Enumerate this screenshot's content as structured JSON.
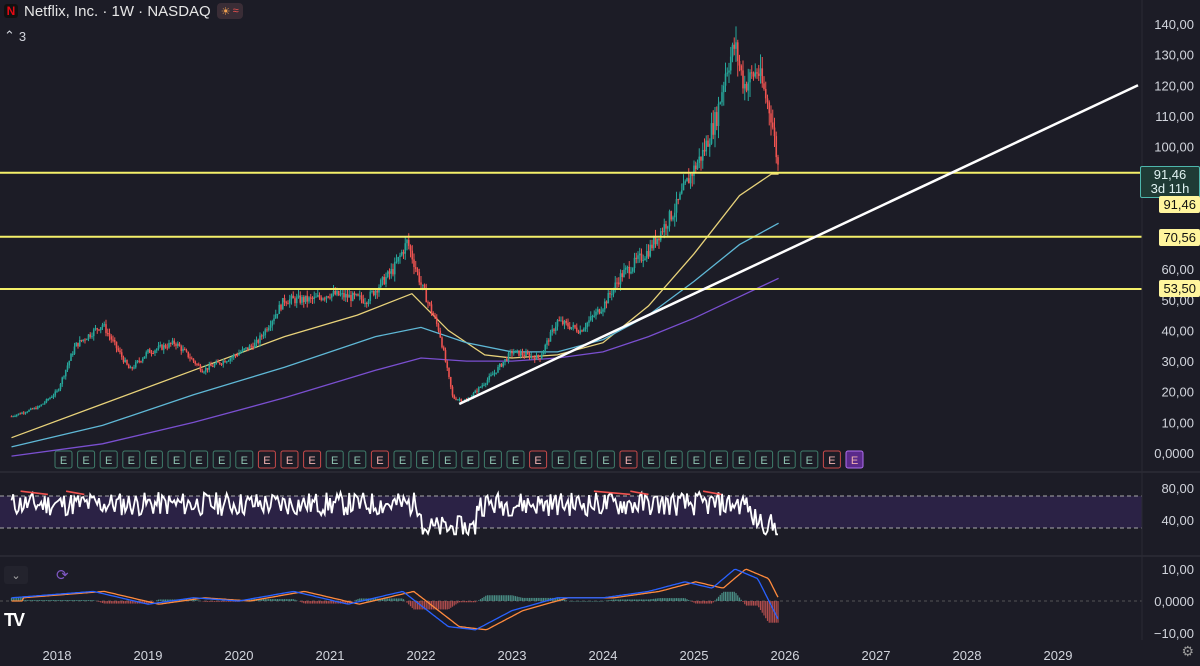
{
  "header": {
    "logo_letter": "N",
    "title": "Netflix, Inc. · 1W · NASDAQ",
    "badge_icons": [
      "sun-icon",
      "wave-icon"
    ]
  },
  "collapse": {
    "count": "3"
  },
  "price_axis": {
    "ticks": [
      "140,00",
      "130,00",
      "120,00",
      "110,00",
      "100,00",
      "60,00",
      "50,00",
      "40,00",
      "30,00",
      "20,00",
      "10,00",
      "0,0000"
    ]
  },
  "price_tags": {
    "current": "91,46",
    "countdown": "3d 11h",
    "yellow_1": "91,46",
    "yellow_2": "70,56",
    "yellow_3": "53,50"
  },
  "rsi_axis": {
    "ticks": [
      "80,00",
      "40,00"
    ]
  },
  "macd_axis": {
    "ticks": [
      "10,00",
      "0,0000",
      "−10,00"
    ]
  },
  "time_axis": {
    "labels": [
      "2018",
      "2019",
      "2020",
      "2021",
      "2022",
      "2023",
      "2024",
      "2025",
      "2026",
      "2027",
      "2028",
      "2029"
    ]
  },
  "earnings": [
    "E",
    "E",
    "E",
    "E",
    "E",
    "E",
    "E",
    "E",
    "E",
    "E",
    "E",
    "E",
    "E",
    "E",
    "E",
    "E",
    "E",
    "E",
    "E",
    "E",
    "E",
    "E",
    "E",
    "E",
    "E",
    "E",
    "E",
    "E",
    "E",
    "E",
    "E",
    "E",
    "E",
    "E",
    "E",
    "E"
  ],
  "earnings_status": [
    "g",
    "g",
    "g",
    "g",
    "g",
    "g",
    "g",
    "g",
    "g",
    "r",
    "r",
    "r",
    "g",
    "g",
    "r",
    "g",
    "g",
    "g",
    "g",
    "g",
    "g",
    "r",
    "g",
    "g",
    "g",
    "r",
    "g",
    "g",
    "g",
    "g",
    "g",
    "g",
    "g",
    "g",
    "r",
    "p"
  ],
  "colors": {
    "background": "#1c1c26",
    "up_candle": "#26a69a",
    "down_candle": "#ef5350",
    "horizontal_lines": "#f5f06a",
    "trendline": "#ffffff",
    "ma_yellow": "#e8d27a",
    "ma_cyan": "#5fb8d6",
    "ma_purple": "#7a4fd0",
    "rsi_band": "#2b2245",
    "macd_line": "#2962ff",
    "signal_line": "#ff8a3d"
  },
  "chart_data": {
    "type": "candlestick",
    "title": "Netflix, Inc. · 1W · NASDAQ",
    "x": [
      "2018",
      "2019",
      "2020",
      "2021",
      "2022",
      "2023",
      "2024",
      "2025",
      "2026"
    ],
    "approx_close": [
      33,
      27,
      32,
      52,
      60,
      30,
      48,
      88,
      91.46
    ],
    "ylim": [
      0,
      140
    ],
    "horizontal_levels": [
      91.46,
      70.56,
      53.5
    ],
    "high": 134,
    "low": 16,
    "indicators": [
      "moving-averages",
      "RSI",
      "MACD"
    ],
    "rsi_levels": [
      70,
      30
    ],
    "macd_range": [
      -10,
      10
    ]
  }
}
